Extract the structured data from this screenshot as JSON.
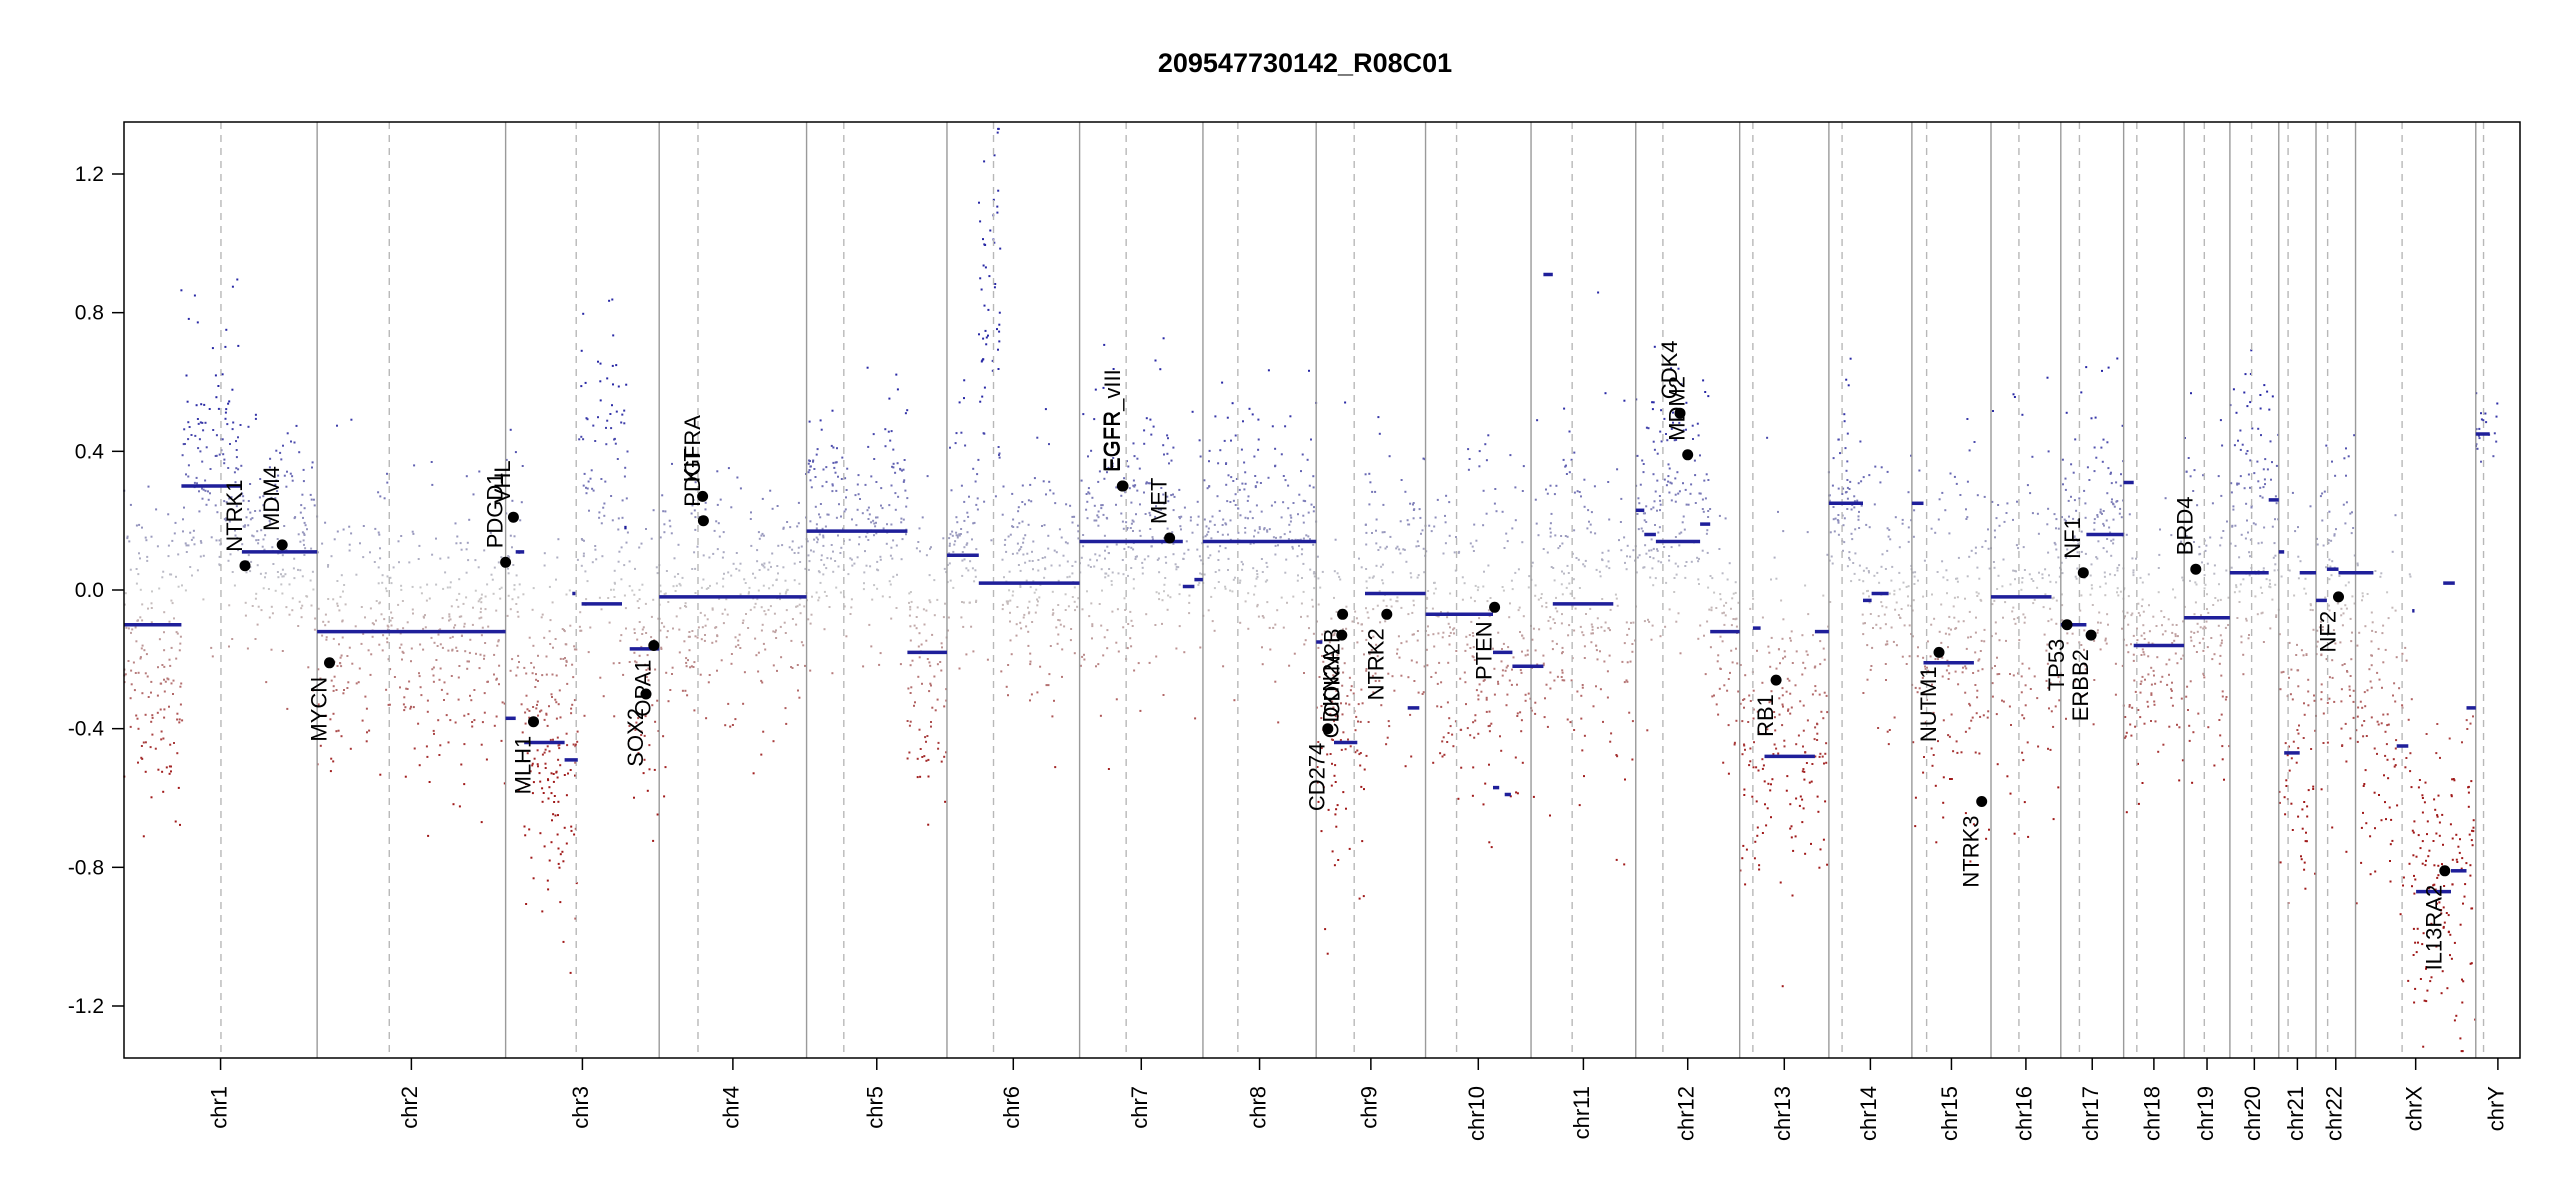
{
  "chart_data": {
    "type": "scatter",
    "title": "209547730142_R08C01",
    "xlabel": "",
    "ylabel": "",
    "ylim": [
      -1.35,
      1.35
    ],
    "yticks": [
      1.2,
      0.8,
      0.4,
      0.0,
      -0.4,
      -0.8,
      -1.2
    ],
    "ytick_labels": [
      "1.2",
      "0.8",
      "0.4",
      "0.0",
      "-0.4",
      "-0.8",
      "-1.2"
    ],
    "grid": false,
    "colors": {
      "gain": "#2f2fa8",
      "loss": "#a01818",
      "neutral": "#c8c8c8",
      "segment": "#1f1f9a",
      "separator": "#9a9a9a"
    },
    "chromosomes": [
      {
        "name": "chr1",
        "start": 0,
        "end": 249,
        "centromere": 125
      },
      {
        "name": "chr2",
        "start": 249,
        "end": 492,
        "centromere": 93
      },
      {
        "name": "chr3",
        "start": 492,
        "end": 690,
        "centromere": 91
      },
      {
        "name": "chr4",
        "start": 690,
        "end": 880,
        "centromere": 50
      },
      {
        "name": "chr5",
        "start": 880,
        "end": 1061,
        "centromere": 48
      },
      {
        "name": "chr6",
        "start": 1061,
        "end": 1232,
        "centromere": 60
      },
      {
        "name": "chr7",
        "start": 1232,
        "end": 1391,
        "centromere": 60
      },
      {
        "name": "chr8",
        "start": 1391,
        "end": 1537,
        "centromere": 45
      },
      {
        "name": "chr9",
        "start": 1537,
        "end": 1678,
        "centromere": 49
      },
      {
        "name": "chr10",
        "start": 1678,
        "end": 1814,
        "centromere": 40
      },
      {
        "name": "chr11",
        "start": 1814,
        "end": 1949,
        "centromere": 53
      },
      {
        "name": "chr12",
        "start": 1949,
        "end": 2083,
        "centromere": 35
      },
      {
        "name": "chr13",
        "start": 2083,
        "end": 2198,
        "centromere": 17
      },
      {
        "name": "chr14",
        "start": 2198,
        "end": 2305,
        "centromere": 17
      },
      {
        "name": "chr15",
        "start": 2305,
        "end": 2407,
        "centromere": 19
      },
      {
        "name": "chr16",
        "start": 2407,
        "end": 2497,
        "centromere": 36
      },
      {
        "name": "chr17",
        "start": 2497,
        "end": 2578,
        "centromere": 24
      },
      {
        "name": "chr18",
        "start": 2578,
        "end": 2656,
        "centromere": 17
      },
      {
        "name": "chr19",
        "start": 2656,
        "end": 2715,
        "centromere": 26
      },
      {
        "name": "chr20",
        "start": 2715,
        "end": 2778,
        "centromere": 28
      },
      {
        "name": "chr21",
        "start": 2778,
        "end": 2826,
        "centromere": 12
      },
      {
        "name": "chr22",
        "start": 2826,
        "end": 2877,
        "centromere": 15
      },
      {
        "name": "chrX",
        "start": 2877,
        "end": 3032,
        "centromere": 60
      },
      {
        "name": "chrY",
        "start": 3032,
        "end": 3089,
        "centromere": 10
      }
    ],
    "segments": [
      {
        "x0": 0,
        "x1": 74,
        "y": -0.1
      },
      {
        "x0": 74,
        "x1": 152,
        "y": 0.3
      },
      {
        "x0": 152,
        "x1": 249,
        "y": 0.11
      },
      {
        "x0": 249,
        "x1": 492,
        "y": -0.12
      },
      {
        "x0": 492,
        "x1": 505,
        "y": -0.37
      },
      {
        "x0": 505,
        "x1": 516,
        "y": 0.11
      },
      {
        "x0": 516,
        "x1": 568,
        "y": -0.44
      },
      {
        "x0": 568,
        "x1": 585,
        "y": -0.49
      },
      {
        "x0": 578,
        "x1": 582,
        "y": -0.01
      },
      {
        "x0": 590,
        "x1": 642,
        "y": -0.04
      },
      {
        "x0": 645,
        "x1": 648,
        "y": 0.18
      },
      {
        "x0": 652,
        "x1": 690,
        "y": -0.17
      },
      {
        "x0": 690,
        "x1": 880,
        "y": -0.02
      },
      {
        "x0": 880,
        "x1": 1010,
        "y": 0.17
      },
      {
        "x0": 1010,
        "x1": 1061,
        "y": -0.18
      },
      {
        "x0": 1061,
        "x1": 1102,
        "y": 0.1
      },
      {
        "x0": 1102,
        "x1": 1232,
        "y": 0.02
      },
      {
        "x0": 1232,
        "x1": 1365,
        "y": 0.14
      },
      {
        "x0": 1365,
        "x1": 1380,
        "y": 0.01
      },
      {
        "x0": 1380,
        "x1": 1391,
        "y": 0.03
      },
      {
        "x0": 1391,
        "x1": 1537,
        "y": 0.14
      },
      {
        "x0": 1537,
        "x1": 1545,
        "y": -0.15
      },
      {
        "x0": 1560,
        "x1": 1590,
        "y": -0.44
      },
      {
        "x0": 1600,
        "x1": 1678,
        "y": -0.01
      },
      {
        "x0": 1655,
        "x1": 1670,
        "y": -0.34
      },
      {
        "x0": 1678,
        "x1": 1765,
        "y": -0.07
      },
      {
        "x0": 1765,
        "x1": 1790,
        "y": -0.18
      },
      {
        "x0": 1790,
        "x1": 1814,
        "y": -0.22
      },
      {
        "x0": 1765,
        "x1": 1773,
        "y": -0.57
      },
      {
        "x0": 1780,
        "x1": 1788,
        "y": -0.59
      },
      {
        "x0": 1814,
        "x1": 1830,
        "y": -0.22
      },
      {
        "x0": 1830,
        "x1": 1842,
        "y": 0.91
      },
      {
        "x0": 1842,
        "x1": 1920,
        "y": -0.04
      },
      {
        "x0": 1949,
        "x1": 1960,
        "y": 0.23
      },
      {
        "x0": 1960,
        "x1": 1975,
        "y": 0.16
      },
      {
        "x0": 1975,
        "x1": 2032,
        "y": 0.14
      },
      {
        "x0": 2032,
        "x1": 2045,
        "y": 0.19
      },
      {
        "x0": 2045,
        "x1": 2083,
        "y": -0.12
      },
      {
        "x0": 2100,
        "x1": 2110,
        "y": -0.11
      },
      {
        "x0": 2115,
        "x1": 2180,
        "y": -0.48
      },
      {
        "x0": 2180,
        "x1": 2198,
        "y": -0.12
      },
      {
        "x0": 2198,
        "x1": 2242,
        "y": 0.25
      },
      {
        "x0": 2242,
        "x1": 2253,
        "y": -0.03
      },
      {
        "x0": 2253,
        "x1": 2275,
        "y": -0.01
      },
      {
        "x0": 2305,
        "x1": 2320,
        "y": 0.25
      },
      {
        "x0": 2320,
        "x1": 2385,
        "y": -0.21
      },
      {
        "x0": 2407,
        "x1": 2485,
        "y": -0.02
      },
      {
        "x0": 2497,
        "x1": 2530,
        "y": -0.1
      },
      {
        "x0": 2530,
        "x1": 2578,
        "y": 0.16
      },
      {
        "x0": 2578,
        "x1": 2591,
        "y": 0.31
      },
      {
        "x0": 2591,
        "x1": 2656,
        "y": -0.16
      },
      {
        "x0": 2656,
        "x1": 2715,
        "y": -0.08
      },
      {
        "x0": 2715,
        "x1": 2765,
        "y": 0.05
      },
      {
        "x0": 2765,
        "x1": 2778,
        "y": 0.26
      },
      {
        "x0": 2778,
        "x1": 2785,
        "y": 0.11
      },
      {
        "x0": 2785,
        "x1": 2805,
        "y": -0.47
      },
      {
        "x0": 2805,
        "x1": 2826,
        "y": 0.05
      },
      {
        "x0": 2826,
        "x1": 2840,
        "y": -0.03
      },
      {
        "x0": 2840,
        "x1": 2855,
        "y": 0.06
      },
      {
        "x0": 2855,
        "x1": 2900,
        "y": 0.05
      },
      {
        "x0": 2930,
        "x1": 2945,
        "y": -0.45
      },
      {
        "x0": 2950,
        "x1": 2953,
        "y": -0.06
      },
      {
        "x0": 2955,
        "x1": 3000,
        "y": -0.87
      },
      {
        "x0": 2990,
        "x1": 3005,
        "y": 0.02
      },
      {
        "x0": 3000,
        "x1": 3020,
        "y": -0.81
      },
      {
        "x0": 3020,
        "x1": 3032,
        "y": -0.34
      },
      {
        "x0": 3032,
        "x1": 3050,
        "y": 0.45
      }
    ],
    "genes": [
      {
        "name": "NTRK1",
        "x": 156,
        "y": 0.07,
        "side": "up"
      },
      {
        "name": "MDM4",
        "x": 204,
        "y": 0.13,
        "side": "up"
      },
      {
        "name": "MYCN",
        "x": 265,
        "y": -0.21,
        "side": "down"
      },
      {
        "name": "PDGD1",
        "x": 492,
        "y": 0.08,
        "side": "up"
      },
      {
        "name": "VHL",
        "x": 502,
        "y": 0.21,
        "side": "up"
      },
      {
        "name": "MLH1",
        "x": 528,
        "y": -0.38,
        "side": "down"
      },
      {
        "name": "SOX2",
        "x": 673,
        "y": -0.3,
        "side": "down"
      },
      {
        "name": "OPA1",
        "x": 683,
        "y": -0.16,
        "side": "down"
      },
      {
        "name": "KIT",
        "x": 746,
        "y": 0.27,
        "side": "up"
      },
      {
        "name": "PDGFRA",
        "x": 747,
        "y": 0.2,
        "side": "up"
      },
      {
        "name": "EGFR",
        "x": 1287,
        "y": 0.3,
        "side": "up"
      },
      {
        "name": "EGFR_vIII",
        "x": 1288,
        "y": 0.3,
        "side": "up"
      },
      {
        "name": "MET",
        "x": 1348,
        "y": 0.15,
        "side": "up"
      },
      {
        "name": "CD274",
        "x": 1552,
        "y": -0.4,
        "side": "down"
      },
      {
        "name": "CDKN2A",
        "x": 1570,
        "y": -0.13,
        "side": "down"
      },
      {
        "name": "CDKN2B",
        "x": 1571,
        "y": -0.07,
        "side": "down"
      },
      {
        "name": "NTRK2",
        "x": 1628,
        "y": -0.07,
        "side": "down"
      },
      {
        "name": "PTEN",
        "x": 1767,
        "y": -0.05,
        "side": "down"
      },
      {
        "name": "CDK4",
        "x": 2006,
        "y": 0.51,
        "side": "up"
      },
      {
        "name": "MDM2",
        "x": 2016,
        "y": 0.39,
        "side": "up"
      },
      {
        "name": "RB1",
        "x": 2130,
        "y": -0.26,
        "side": "down"
      },
      {
        "name": "NUTM1",
        "x": 2340,
        "y": -0.18,
        "side": "down"
      },
      {
        "name": "NTRK3",
        "x": 2395,
        "y": -0.61,
        "side": "down"
      },
      {
        "name": "TP53",
        "x": 2505,
        "y": -0.1,
        "side": "down"
      },
      {
        "name": "NF1",
        "x": 2526,
        "y": 0.05,
        "side": "up"
      },
      {
        "name": "ERBB2",
        "x": 2536,
        "y": -0.13,
        "side": "down"
      },
      {
        "name": "BRD4",
        "x": 2671,
        "y": 0.06,
        "side": "up"
      },
      {
        "name": "NF2",
        "x": 2855,
        "y": -0.02,
        "side": "down"
      },
      {
        "name": "IL13RA2",
        "x": 2992,
        "y": -0.81,
        "side": "down"
      }
    ],
    "probe_profile": [
      {
        "x0": 0,
        "x1": 74,
        "mean": -0.18,
        "spread": 0.22,
        "n": 160
      },
      {
        "x0": 74,
        "x1": 152,
        "mean": 0.32,
        "spread": 0.2,
        "n": 150
      },
      {
        "x0": 152,
        "x1": 249,
        "mean": 0.12,
        "spread": 0.16,
        "n": 170
      },
      {
        "x0": 249,
        "x1": 492,
        "mean": -0.14,
        "spread": 0.2,
        "n": 380
      },
      {
        "x0": 492,
        "x1": 516,
        "mean": 0.05,
        "spread": 0.22,
        "n": 40
      },
      {
        "x0": 516,
        "x1": 585,
        "mean": -0.45,
        "spread": 0.25,
        "n": 180
      },
      {
        "x0": 585,
        "x1": 650,
        "mean": 0.2,
        "spread": 0.28,
        "n": 120
      },
      {
        "x0": 650,
        "x1": 690,
        "mean": -0.2,
        "spread": 0.2,
        "n": 70
      },
      {
        "x0": 690,
        "x1": 880,
        "mean": -0.03,
        "spread": 0.17,
        "n": 300
      },
      {
        "x0": 880,
        "x1": 1010,
        "mean": 0.18,
        "spread": 0.17,
        "n": 240
      },
      {
        "x0": 1010,
        "x1": 1061,
        "mean": -0.22,
        "spread": 0.22,
        "n": 100
      },
      {
        "x0": 1061,
        "x1": 1102,
        "mean": 0.12,
        "spread": 0.2,
        "n": 80
      },
      {
        "x0": 1102,
        "x1": 1130,
        "mean": 0.7,
        "spread": 0.3,
        "n": 60
      },
      {
        "x0": 1130,
        "x1": 1232,
        "mean": 0.02,
        "spread": 0.16,
        "n": 180
      },
      {
        "x0": 1232,
        "x1": 1391,
        "mean": 0.16,
        "spread": 0.2,
        "n": 280
      },
      {
        "x0": 1391,
        "x1": 1537,
        "mean": 0.16,
        "spread": 0.18,
        "n": 260
      },
      {
        "x0": 1537,
        "x1": 1600,
        "mean": -0.35,
        "spread": 0.25,
        "n": 130
      },
      {
        "x0": 1600,
        "x1": 1678,
        "mean": 0.0,
        "spread": 0.22,
        "n": 140
      },
      {
        "x0": 1678,
        "x1": 1814,
        "mean": -0.15,
        "spread": 0.24,
        "n": 240
      },
      {
        "x0": 1814,
        "x1": 1949,
        "mean": -0.05,
        "spread": 0.24,
        "n": 240
      },
      {
        "x0": 1949,
        "x1": 2045,
        "mean": 0.22,
        "spread": 0.2,
        "n": 180
      },
      {
        "x0": 2045,
        "x1": 2083,
        "mean": -0.12,
        "spread": 0.16,
        "n": 60
      },
      {
        "x0": 2083,
        "x1": 2198,
        "mean": -0.42,
        "spread": 0.26,
        "n": 200
      },
      {
        "x0": 2198,
        "x1": 2242,
        "mean": 0.25,
        "spread": 0.14,
        "n": 80
      },
      {
        "x0": 2242,
        "x1": 2305,
        "mean": -0.02,
        "spread": 0.18,
        "n": 100
      },
      {
        "x0": 2305,
        "x1": 2407,
        "mean": -0.18,
        "spread": 0.26,
        "n": 180
      },
      {
        "x0": 2407,
        "x1": 2497,
        "mean": -0.05,
        "spread": 0.24,
        "n": 150
      },
      {
        "x0": 2497,
        "x1": 2578,
        "mean": 0.12,
        "spread": 0.2,
        "n": 170
      },
      {
        "x0": 2578,
        "x1": 2656,
        "mean": -0.18,
        "spread": 0.18,
        "n": 140
      },
      {
        "x0": 2656,
        "x1": 2715,
        "mean": -0.05,
        "spread": 0.22,
        "n": 110
      },
      {
        "x0": 2715,
        "x1": 2778,
        "mean": 0.2,
        "spread": 0.22,
        "n": 130
      },
      {
        "x0": 2778,
        "x1": 2826,
        "mean": -0.35,
        "spread": 0.28,
        "n": 90
      },
      {
        "x0": 2826,
        "x1": 2877,
        "mean": -0.05,
        "spread": 0.24,
        "n": 110
      },
      {
        "x0": 2877,
        "x1": 2950,
        "mean": -0.4,
        "spread": 0.25,
        "n": 120
      },
      {
        "x0": 2950,
        "x1": 3032,
        "mean": -0.85,
        "spread": 0.22,
        "n": 150
      },
      {
        "x0": 3032,
        "x1": 3060,
        "mean": 0.45,
        "spread": 0.08,
        "n": 20
      }
    ]
  }
}
